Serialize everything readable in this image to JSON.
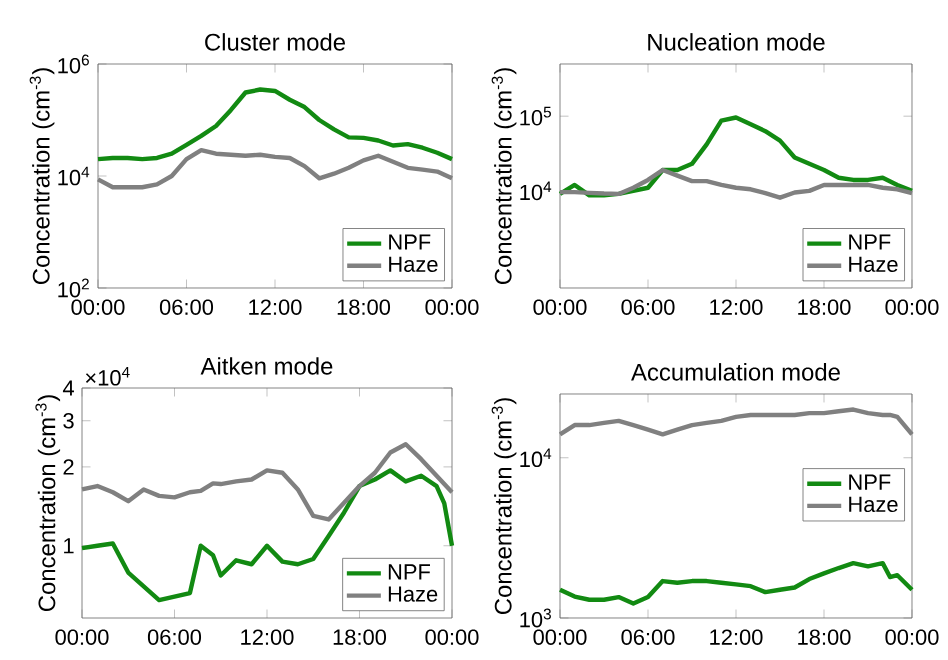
{
  "chart_data": [
    {
      "type": "line",
      "title": "Cluster mode",
      "ylabel": "Concentration (cm$^{-3}$)",
      "log": "y",
      "legend": "bottom right",
      "x": [
        0,
        1,
        2,
        3,
        4,
        5,
        6,
        7,
        8,
        9,
        10,
        11,
        12,
        13,
        14,
        15,
        16,
        17,
        18,
        19,
        20,
        21,
        22,
        23,
        24
      ],
      "xlim": [
        0,
        24
      ],
      "xticks": [
        {
          "value": 0,
          "label": "00:00"
        },
        {
          "value": 6,
          "label": "06:00"
        },
        {
          "value": 12,
          "label": "12:00"
        },
        {
          "value": 18,
          "label": "18:00"
        },
        {
          "value": 24,
          "label": "00:00"
        }
      ],
      "ylim": [
        100,
        1000000
      ],
      "yticks": [
        {
          "value": 100,
          "label": "10$^{2}$"
        },
        {
          "value": 10000,
          "label": "10$^{4}$"
        },
        {
          "value": 1000000,
          "label": "10$^{6}$"
        }
      ],
      "series": [
        {
          "name": "NPF",
          "color": "#128a12",
          "values": [
            20000,
            21000,
            21000,
            20000,
            21000,
            25000,
            36000,
            52000,
            78000,
            150000,
            310000,
            350000,
            330000,
            230000,
            170000,
            100000,
            68000,
            49000,
            48000,
            43000,
            35000,
            37000,
            32000,
            26000,
            20000
          ]
        },
        {
          "name": "Haze",
          "color": "#808080",
          "values": [
            8700,
            6300,
            6300,
            6300,
            7100,
            10000,
            20000,
            29000,
            25000,
            24000,
            23000,
            24000,
            22000,
            21000,
            15000,
            9100,
            11000,
            14000,
            19000,
            23000,
            18000,
            14000,
            13000,
            12000,
            9100
          ]
        }
      ]
    },
    {
      "type": "line",
      "title": "Nucleation mode",
      "ylabel": "Concentration (cm$^{-3}$)",
      "log": "y",
      "legend": "bottom right",
      "x": [
        0,
        1,
        2,
        3,
        4,
        5,
        6,
        7,
        8,
        9,
        10,
        11,
        12,
        13,
        14,
        15,
        16,
        17,
        18,
        19,
        20,
        21,
        22,
        23,
        24
      ],
      "xlim": [
        0,
        24
      ],
      "xticks": [
        {
          "value": 0,
          "label": "00:00"
        },
        {
          "value": 6,
          "label": "06:00"
        },
        {
          "value": 12,
          "label": "12:00"
        },
        {
          "value": 18,
          "label": "18:00"
        },
        {
          "value": 24,
          "label": "00:00"
        }
      ],
      "ylim": [
        500,
        500000
      ],
      "yticks": [
        {
          "value": 10000,
          "label": "10$^{4}$"
        },
        {
          "value": 100000,
          "label": "10$^{5}$"
        }
      ],
      "series": [
        {
          "name": "NPF",
          "color": "#128a12",
          "values": [
            9100,
            12000,
            8700,
            8700,
            9100,
            10000,
            11000,
            19000,
            19000,
            23000,
            42000,
            87000,
            96000,
            78000,
            63000,
            47000,
            28000,
            23000,
            19000,
            15000,
            14000,
            14000,
            15000,
            12000,
            10000
          ]
        },
        {
          "name": "Haze",
          "color": "#808080",
          "values": [
            9600,
            9600,
            9400,
            9200,
            9100,
            11000,
            14000,
            19000,
            16000,
            13500,
            13500,
            12000,
            11000,
            10500,
            9300,
            8100,
            9500,
            10000,
            12000,
            12000,
            12000,
            12000,
            11000,
            10500,
            9300
          ]
        }
      ]
    },
    {
      "type": "line",
      "title": "Aitken mode",
      "ylabel": "Concentration (cm$^{-3}$)",
      "log": "y",
      "legend": "bottom right",
      "annotations": [
        "×10$^{4}$"
      ],
      "x": [
        0,
        1,
        2,
        3,
        4,
        5,
        6,
        7,
        7.7,
        8.5,
        9,
        10,
        11,
        12,
        13,
        14,
        15,
        16,
        17,
        18,
        19,
        20,
        21,
        22,
        23,
        23.5,
        24
      ],
      "xlim": [
        0,
        24
      ],
      "xticks": [
        {
          "value": 0,
          "label": "00:00"
        },
        {
          "value": 6,
          "label": "06:00"
        },
        {
          "value": 12,
          "label": "12:00"
        },
        {
          "value": 18,
          "label": "18:00"
        },
        {
          "value": 24,
          "label": "00:00"
        }
      ],
      "ylim": [
        0.53,
        4
      ],
      "yticks": [
        1,
        2,
        3,
        4
      ],
      "series": [
        {
          "name": "NPF",
          "color": "#128a12",
          "values": [
            0.98,
            1.0,
            1.02,
            0.79,
            0.7,
            0.62,
            0.64,
            0.66,
            1.0,
            0.92,
            0.77,
            0.88,
            0.85,
            1.0,
            0.87,
            0.85,
            0.89,
            1.09,
            1.34,
            1.69,
            1.79,
            1.94,
            1.76,
            1.85,
            1.69,
            1.45,
            1.0
          ]
        },
        {
          "name": "Haze",
          "color": "#808080",
          "values": [
            1.64,
            1.69,
            1.6,
            1.48,
            1.64,
            1.55,
            1.53,
            1.6,
            1.62,
            1.73,
            1.72,
            1.76,
            1.79,
            1.94,
            1.9,
            1.64,
            1.3,
            1.26,
            1.46,
            1.69,
            1.9,
            2.27,
            2.44,
            2.14,
            1.85,
            1.72,
            1.6
          ]
        }
      ]
    },
    {
      "type": "line",
      "title": "Accumulation mode",
      "ylabel": "Concentration (cm$^{-3}$)",
      "log": "y",
      "legend": "right",
      "x": [
        0,
        1,
        2,
        3,
        4,
        5,
        6,
        7,
        8,
        9,
        10,
        11,
        12,
        13,
        14,
        15,
        16,
        17,
        18,
        19,
        20,
        21,
        22,
        22.5,
        23,
        24
      ],
      "xlim": [
        0,
        24
      ],
      "xticks": [
        {
          "value": 0,
          "label": "00:00"
        },
        {
          "value": 6,
          "label": "06:00"
        },
        {
          "value": 12,
          "label": "12:00"
        },
        {
          "value": 18,
          "label": "18:00"
        },
        {
          "value": 24,
          "label": "00:00"
        }
      ],
      "ylim": [
        1000,
        25000
      ],
      "yticks": [
        {
          "value": 1000,
          "label": "10$^{3}$"
        },
        {
          "value": 10000,
          "label": "10$^{4}$"
        }
      ],
      "series": [
        {
          "name": "NPF",
          "color": "#128a12",
          "values": [
            1500,
            1360,
            1300,
            1300,
            1350,
            1230,
            1350,
            1700,
            1660,
            1700,
            1700,
            1660,
            1620,
            1580,
            1450,
            1500,
            1550,
            1750,
            1900,
            2050,
            2200,
            2100,
            2200,
            1800,
            1850,
            1500
          ]
        },
        {
          "name": "Haze",
          "color": "#808080",
          "values": [
            14000,
            16000,
            16000,
            16500,
            17000,
            16000,
            15000,
            14000,
            15000,
            16000,
            16500,
            17000,
            18000,
            18500,
            18500,
            18500,
            18500,
            19000,
            19000,
            19500,
            20000,
            19000,
            18500,
            18500,
            18000,
            14000
          ]
        }
      ]
    }
  ]
}
